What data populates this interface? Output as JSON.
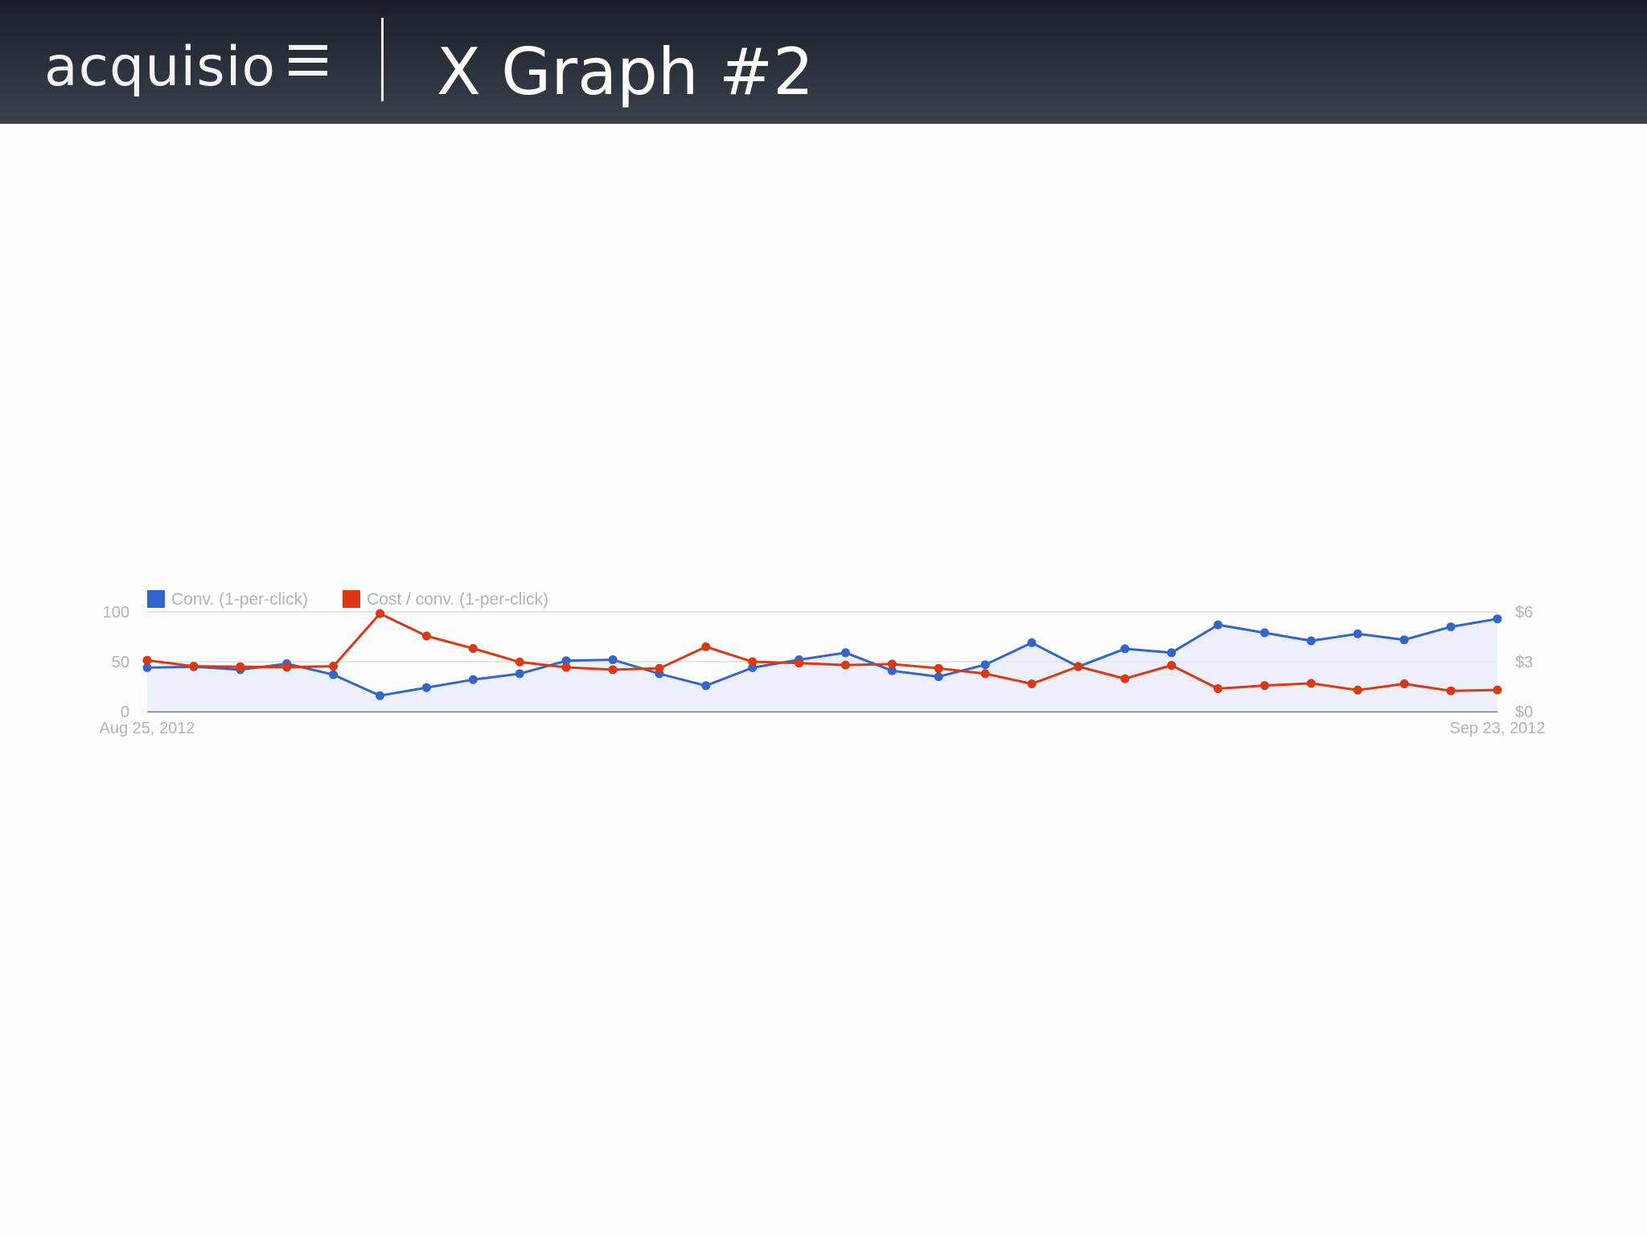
{
  "header": {
    "logo_text": "acquisio",
    "title": "X Graph #2"
  },
  "colors": {
    "header_bg": "#2b323c",
    "conv_series": "#3366cc",
    "cost_series": "#dc3912",
    "area_fill": "#e8ecf9",
    "axis_text": "#b3b3b3"
  },
  "chart_data": {
    "type": "line",
    "title": "",
    "x_start_label": "Aug 25, 2012",
    "x_end_label": "Sep 23, 2012",
    "left_axis": {
      "ticks": [
        "0",
        "50",
        "100"
      ],
      "range": [
        0,
        100
      ]
    },
    "right_axis": {
      "ticks": [
        "$0",
        "$3",
        "$6"
      ],
      "range": [
        0,
        6
      ]
    },
    "grid": true,
    "legend_position": "top-left",
    "x": [
      "Aug 25",
      "Aug 26",
      "Aug 27",
      "Aug 28",
      "Aug 29",
      "Aug 30",
      "Aug 31",
      "Sep 1",
      "Sep 2",
      "Sep 3",
      "Sep 4",
      "Sep 5",
      "Sep 6",
      "Sep 7",
      "Sep 8",
      "Sep 9",
      "Sep 10",
      "Sep 11",
      "Sep 12",
      "Sep 13",
      "Sep 14",
      "Sep 15",
      "Sep 16",
      "Sep 17",
      "Sep 18",
      "Sep 19",
      "Sep 20",
      "Sep 21",
      "Sep 22",
      "Sep 23"
    ],
    "series": [
      {
        "name": "Conv. (1-per-click)",
        "axis": "left",
        "color": "#3366cc",
        "area": true,
        "values": [
          44,
          45,
          42,
          48,
          37,
          16,
          24,
          32,
          38,
          51,
          52,
          38,
          26,
          44,
          52,
          59,
          41,
          35,
          47,
          69,
          45,
          63,
          59,
          87,
          79,
          71,
          78,
          72,
          85,
          93
        ]
      },
      {
        "name": "Cost / conv. (1-per-click)",
        "axis": "right",
        "color": "#dc3912",
        "area": false,
        "values": [
          3.08,
          2.73,
          2.7,
          2.67,
          2.73,
          5.9,
          4.55,
          3.8,
          2.98,
          2.66,
          2.52,
          2.6,
          3.9,
          3.0,
          2.92,
          2.8,
          2.86,
          2.6,
          2.28,
          1.67,
          2.71,
          1.98,
          2.78,
          1.38,
          1.57,
          1.7,
          1.29,
          1.67,
          1.25,
          1.3
        ]
      }
    ]
  }
}
